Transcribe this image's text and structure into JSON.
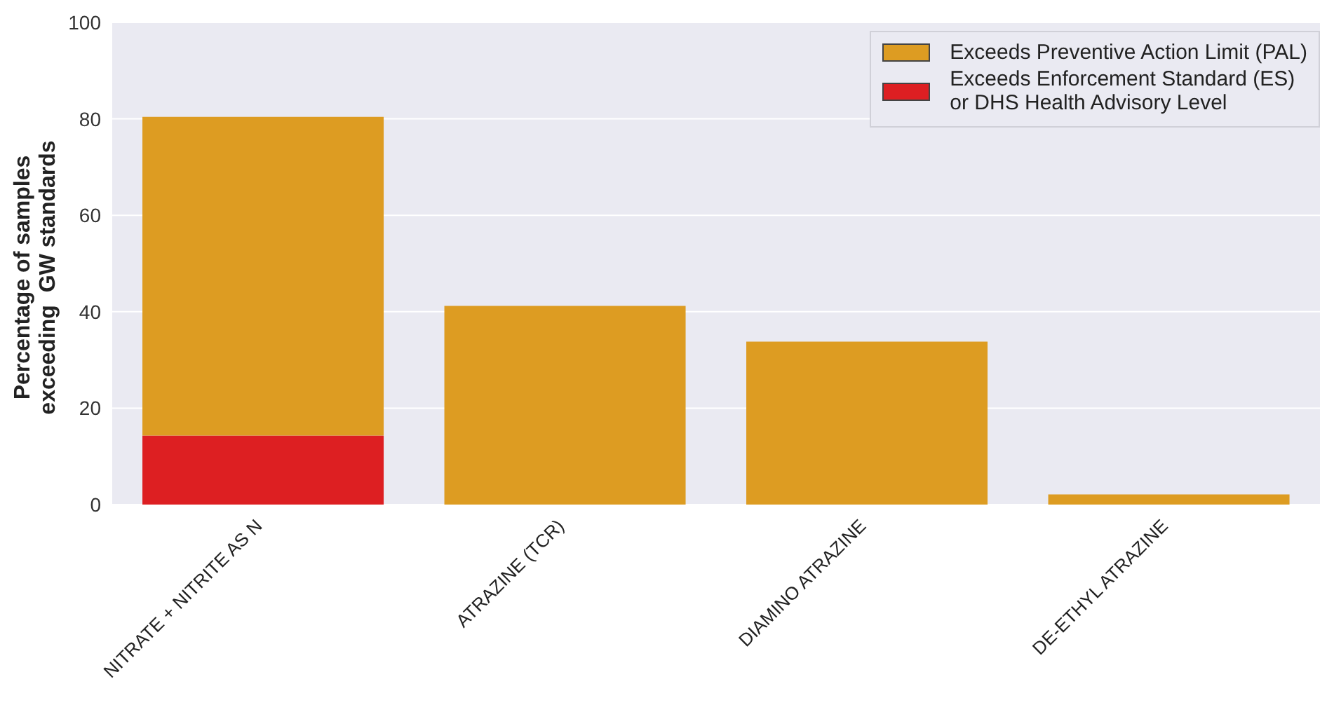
{
  "chart_data": {
    "type": "bar",
    "ylabel": "Percentage of samples\nexceeding  GW standards",
    "categories": [
      "NITRATE + NITRITE AS N",
      "ATRAZINE (TCR)",
      "DIAMINO ATRAZINE",
      "DE-ETHYL ATRAZINE"
    ],
    "stacked": true,
    "series": [
      {
        "name": "Exceeds Enforcement Standard (ES)\nor DHS Health Advisory Level",
        "color": "#dd1f22",
        "values": [
          14.3,
          0,
          0,
          0
        ]
      },
      {
        "name": "Exceeds Preventive Action Limit (PAL)",
        "color": "#dd9c22",
        "values": [
          66.1,
          41.2,
          33.8,
          2.1
        ]
      }
    ],
    "ylim": [
      0,
      100
    ],
    "yticks": [
      0,
      20,
      40,
      60,
      80,
      100
    ],
    "grid": "y",
    "legend": "top right"
  }
}
